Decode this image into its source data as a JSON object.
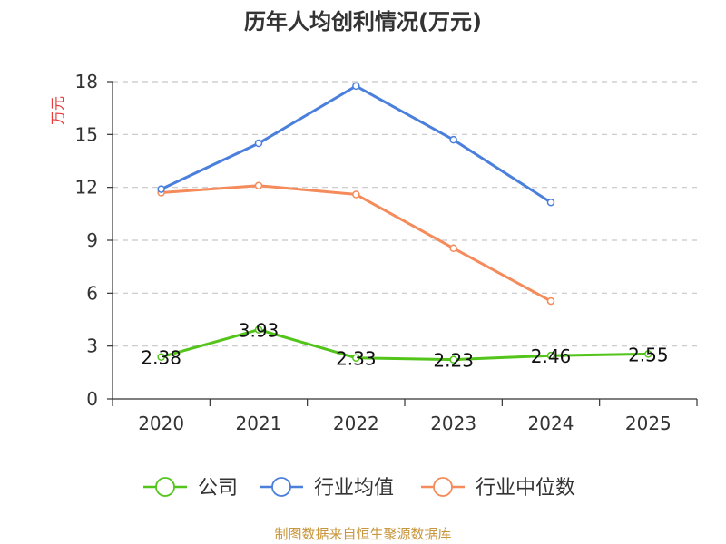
{
  "chart_data": {
    "type": "line",
    "title": "历年人均创利情况(万元)",
    "ylabel": "万元",
    "xlabel": "",
    "categories": [
      "2020",
      "2021",
      "2022",
      "2023",
      "2024",
      "2025"
    ],
    "ylim": [
      0,
      18
    ],
    "yticks": [
      0,
      3,
      6,
      9,
      12,
      15,
      18
    ],
    "grid": true,
    "legend_position": "bottom",
    "series": [
      {
        "name": "公司",
        "color": "#52c41a",
        "values": [
          2.38,
          3.93,
          2.33,
          2.23,
          2.46,
          2.55
        ],
        "labels": [
          "2.38",
          "3.93",
          "2.33",
          "2.23",
          "2.46",
          "2.55"
        ]
      },
      {
        "name": "行业均值",
        "color": "#4a7fdc",
        "values": [
          11.9,
          14.5,
          17.75,
          14.7,
          11.15,
          null
        ]
      },
      {
        "name": "行业中位数",
        "color": "#f58a5a",
        "values": [
          11.7,
          12.1,
          11.6,
          8.55,
          5.55,
          null
        ]
      }
    ]
  },
  "footer": {
    "source": "制图数据来自恒生聚源数据库"
  }
}
